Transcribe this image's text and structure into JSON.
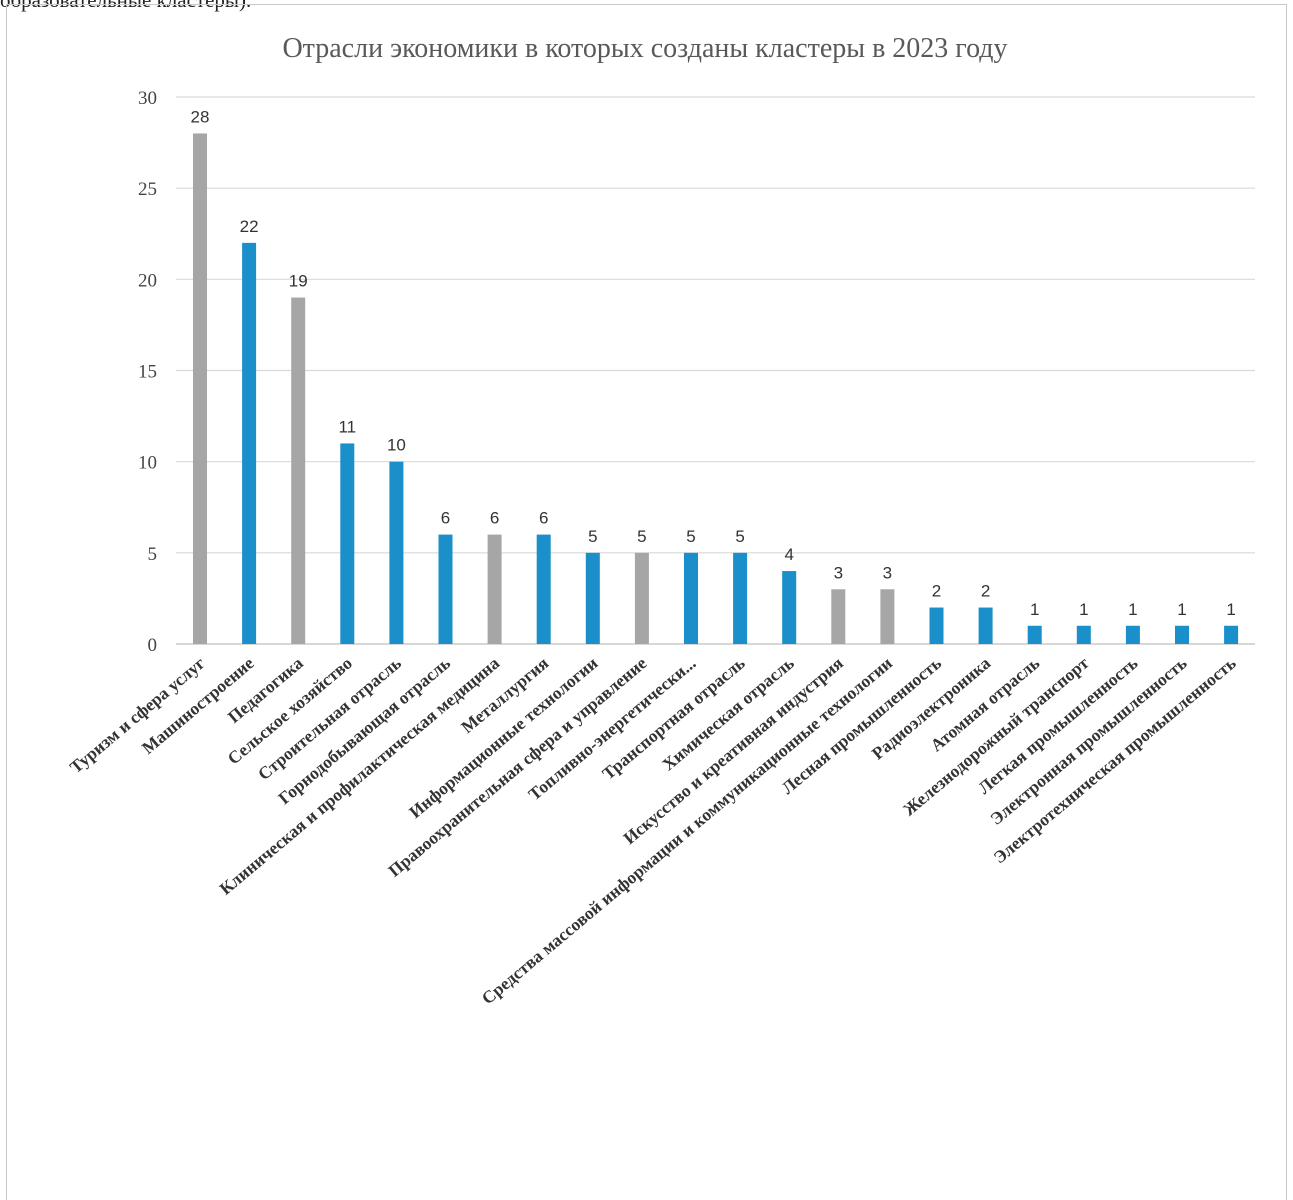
{
  "page": {
    "top_fragment": "образовательные кластеры)."
  },
  "chart_data": {
    "type": "bar",
    "title": "Отрасли экономики в которых созданы кластеры в 2023 году",
    "xlabel": "",
    "ylabel": "",
    "ylim": [
      0,
      30
    ],
    "yticks": [
      0,
      5,
      10,
      15,
      20,
      25,
      30
    ],
    "grid": true,
    "legend": "none",
    "colors": {
      "blue": "#1a8fc9",
      "gray": "#a6a6a6"
    },
    "categories": [
      "Туризм и сфера услуг",
      "Машиностроение",
      "Педагогика",
      "Сельское хозяйство",
      "Строительная отрасль",
      "Горнодобывающая отрасль",
      "Клиническая и профилактическая медицина",
      "Металлургия",
      "Информационные технологии",
      "Правоохранительная сфера и управление",
      "Топливно-энергетически...",
      "Транспортная отрасль",
      "Химическая отрасль",
      "Искусство и креативная индустрия",
      "Средства массовой информации и коммуникационные технологии",
      "Лесная промышленность",
      "Радиоэлектроника",
      "Атомная отрасль",
      "Железнодорожный транспорт",
      "Легкая промышленность",
      "Электронная промышленность",
      "Электротехническая промышленность"
    ],
    "values": [
      28,
      22,
      19,
      11,
      10,
      6,
      6,
      6,
      5,
      5,
      5,
      5,
      4,
      3,
      3,
      2,
      2,
      1,
      1,
      1,
      1,
      1
    ],
    "bar_colors": [
      "gray",
      "blue",
      "gray",
      "blue",
      "blue",
      "blue",
      "gray",
      "blue",
      "blue",
      "gray",
      "blue",
      "blue",
      "blue",
      "gray",
      "gray",
      "blue",
      "blue",
      "blue",
      "blue",
      "blue",
      "blue",
      "blue"
    ],
    "data_labels": [
      "28",
      "22",
      "19",
      "11",
      "10",
      "6",
      "6",
      "6",
      "5",
      "5",
      "5",
      "5",
      "4",
      "3",
      "3",
      "2",
      "2",
      "1",
      "1",
      "1",
      "1",
      "1"
    ]
  }
}
